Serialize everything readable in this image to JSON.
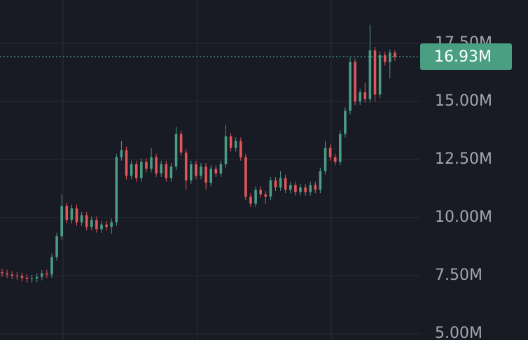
{
  "chart_data": {
    "type": "candlestick",
    "ylim": [
      4730000,
      19370000
    ],
    "yticks": [
      {
        "value": 17500000,
        "label": "17.50M"
      },
      {
        "value": 15000000,
        "label": "15.00M"
      },
      {
        "value": 12500000,
        "label": "12.50M"
      },
      {
        "value": 10000000,
        "label": "10.00M"
      },
      {
        "value": 7500000,
        "label": "7.50M"
      },
      {
        "value": 5000000,
        "label": "5.00M"
      }
    ],
    "grid": true,
    "up_color": "#4a9d84",
    "down_color": "#e0565a",
    "price_line": {
      "value": 16930000,
      "label": "16.93M",
      "color": "#4a9f83"
    },
    "open": [
      7650000,
      7600000,
      7550000,
      7500000,
      7480000,
      7400000,
      7350000,
      7380000,
      7450000,
      7600000,
      7550000,
      8300000,
      9200000,
      10500000,
      9900000,
      10400000,
      9800000,
      10100000,
      9600000,
      9900000,
      9500000,
      9700000,
      9600000,
      9800000,
      12600000,
      12900000,
      11800000,
      12300000,
      11700000,
      12400000,
      12100000,
      12600000,
      11900000,
      12300000,
      11700000,
      12200000,
      13600000,
      12800000,
      11600000,
      12300000,
      11800000,
      12200000,
      11500000,
      12100000,
      11900000,
      12300000,
      13500000,
      13000000,
      13300000,
      12600000,
      10900000,
      10600000,
      11200000,
      11000000,
      10900000,
      11600000,
      11300000,
      11700000,
      11200000,
      11400000,
      11100000,
      11300000,
      11100000,
      11400000,
      11200000,
      12000000,
      13000000,
      12600000,
      12400000,
      13600000,
      14600000,
      16700000,
      15000000,
      15400000,
      15100000,
      17200000,
      15300000,
      17000000,
      16700000,
      17100000
    ],
    "high": [
      7800000,
      7750000,
      7700000,
      7650000,
      7630000,
      7550000,
      7530000,
      7600000,
      7750000,
      7750000,
      8450000,
      9350000,
      11000000,
      10650000,
      10550000,
      10550000,
      10250000,
      10250000,
      10050000,
      10050000,
      9850000,
      9850000,
      9950000,
      12750000,
      13300000,
      13050000,
      12450000,
      12450000,
      12550000,
      12550000,
      13000000,
      12750000,
      12450000,
      12450000,
      12350000,
      13900000,
      13750000,
      12950000,
      12450000,
      12450000,
      12350000,
      12350000,
      12250000,
      12250000,
      12450000,
      14000000,
      13650000,
      13450000,
      13450000,
      12750000,
      11050000,
      11350000,
      11350000,
      11150000,
      11750000,
      11750000,
      12000000,
      11850000,
      11550000,
      11550000,
      11450000,
      11450000,
      11550000,
      11550000,
      12150000,
      13300000,
      13150000,
      12750000,
      13750000,
      14750000,
      16900000,
      16850000,
      15550000,
      15800000,
      18300000,
      17350000,
      17150000,
      17150000,
      17250000,
      17200000
    ],
    "low": [
      7450000,
      7400000,
      7350000,
      7330000,
      7250000,
      7200000,
      7200000,
      7230000,
      7300000,
      7400000,
      7400000,
      8150000,
      9050000,
      9750000,
      9750000,
      9650000,
      9650000,
      9450000,
      9450000,
      9350000,
      9350000,
      9450000,
      9300000,
      9650000,
      12450000,
      11650000,
      11650000,
      11550000,
      11550000,
      11950000,
      11950000,
      11750000,
      11750000,
      11550000,
      11550000,
      12050000,
      12650000,
      11200000,
      11450000,
      11650000,
      11650000,
      11200000,
      11350000,
      11750000,
      11750000,
      12150000,
      12850000,
      12850000,
      12450000,
      10750000,
      10450000,
      10450000,
      10850000,
      10600000,
      10750000,
      11150000,
      11150000,
      11050000,
      11050000,
      10950000,
      10950000,
      10950000,
      10950000,
      11050000,
      11050000,
      11850000,
      12450000,
      12250000,
      12250000,
      13450000,
      14450000,
      14850000,
      14850000,
      14950000,
      14950000,
      15000000,
      15150000,
      16550000,
      16000000,
      16750000
    ],
    "close": [
      7600000,
      7550000,
      7500000,
      7480000,
      7400000,
      7350000,
      7380000,
      7450000,
      7600000,
      7550000,
      8300000,
      9200000,
      10500000,
      9900000,
      10400000,
      9800000,
      10100000,
      9600000,
      9900000,
      9500000,
      9700000,
      9600000,
      9800000,
      12600000,
      12900000,
      11800000,
      12300000,
      11700000,
      12400000,
      12100000,
      12600000,
      11900000,
      12300000,
      11700000,
      12200000,
      13600000,
      12800000,
      11600000,
      12300000,
      11800000,
      12200000,
      11500000,
      12100000,
      11900000,
      12300000,
      13500000,
      13000000,
      13300000,
      12600000,
      10900000,
      10600000,
      11200000,
      11000000,
      10900000,
      11600000,
      11300000,
      11700000,
      11200000,
      11400000,
      11100000,
      11300000,
      11100000,
      11400000,
      11200000,
      12000000,
      13000000,
      12600000,
      12400000,
      13600000,
      14600000,
      16700000,
      15000000,
      15400000,
      15100000,
      17200000,
      15300000,
      17000000,
      16700000,
      17100000,
      16930000
    ]
  }
}
